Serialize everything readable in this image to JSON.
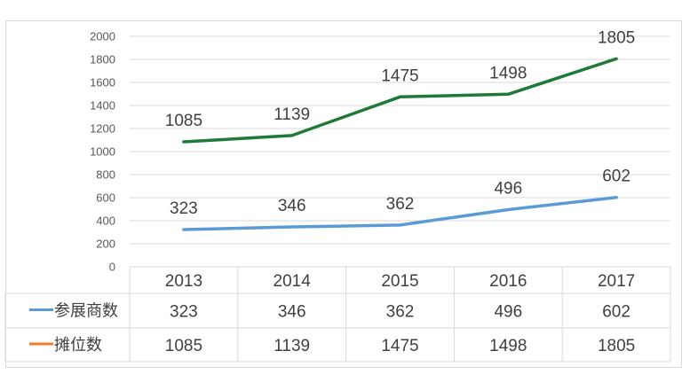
{
  "chart_data": {
    "type": "line",
    "categories": [
      "2013",
      "2014",
      "2015",
      "2016",
      "2017"
    ],
    "ylim": [
      0,
      2000
    ],
    "yticks": [
      "0",
      "200",
      "400",
      "600",
      "800",
      "1000",
      "1200",
      "1400",
      "1600",
      "1800",
      "2000"
    ],
    "grid": true,
    "legend": "data-table",
    "series": [
      {
        "name": "参展商数",
        "values": [
          323,
          346,
          362,
          496,
          602
        ],
        "color": "#5b9bd5",
        "table_key_color": "#5b9bd5"
      },
      {
        "name": "摊位数",
        "values": [
          1085,
          1139,
          1475,
          1498,
          1805
        ],
        "color": "#1f7a3a",
        "table_key_color": "#ed7d31"
      }
    ],
    "table": {
      "header": [
        "2013",
        "2014",
        "2015",
        "2016",
        "2017"
      ],
      "rows": [
        {
          "label": "参展商数",
          "values": [
            "323",
            "346",
            "362",
            "496",
            "602"
          ]
        },
        {
          "label": "摊位数",
          "values": [
            "1085",
            "1139",
            "1475",
            "1498",
            "1805"
          ]
        }
      ]
    }
  }
}
